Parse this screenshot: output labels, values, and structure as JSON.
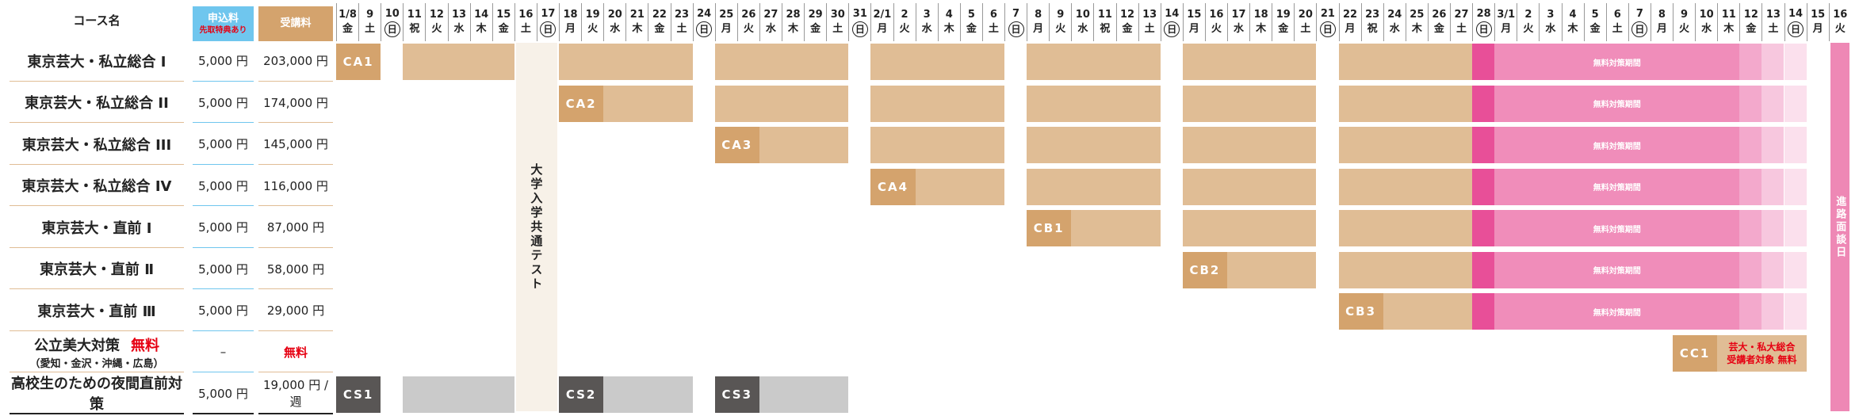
{
  "header": {
    "course": "コース名",
    "apply": "申込料",
    "apply_note": "先取特典あり",
    "fee": "受講料"
  },
  "dates": [
    {
      "date": "1/8",
      "weekday": "金"
    },
    {
      "date": "9",
      "weekday": "土"
    },
    {
      "date": "10",
      "weekday": "日"
    },
    {
      "date": "11",
      "weekday": "祝"
    },
    {
      "date": "12",
      "weekday": "火"
    },
    {
      "date": "13",
      "weekday": "水"
    },
    {
      "date": "14",
      "weekday": "木"
    },
    {
      "date": "15",
      "weekday": "金"
    },
    {
      "date": "16",
      "weekday": "土"
    },
    {
      "date": "17",
      "weekday": "日"
    },
    {
      "date": "18",
      "weekday": "月"
    },
    {
      "date": "19",
      "weekday": "火"
    },
    {
      "date": "20",
      "weekday": "水"
    },
    {
      "date": "21",
      "weekday": "木"
    },
    {
      "date": "22",
      "weekday": "金"
    },
    {
      "date": "23",
      "weekday": "土"
    },
    {
      "date": "24",
      "weekday": "日"
    },
    {
      "date": "25",
      "weekday": "月"
    },
    {
      "date": "26",
      "weekday": "火"
    },
    {
      "date": "27",
      "weekday": "水"
    },
    {
      "date": "28",
      "weekday": "木"
    },
    {
      "date": "29",
      "weekday": "金"
    },
    {
      "date": "30",
      "weekday": "土"
    },
    {
      "date": "31",
      "weekday": "日"
    },
    {
      "date": "2/1",
      "weekday": "月"
    },
    {
      "date": "2",
      "weekday": "火"
    },
    {
      "date": "3",
      "weekday": "水"
    },
    {
      "date": "4",
      "weekday": "木"
    },
    {
      "date": "5",
      "weekday": "金"
    },
    {
      "date": "6",
      "weekday": "土"
    },
    {
      "date": "7",
      "weekday": "日"
    },
    {
      "date": "8",
      "weekday": "月"
    },
    {
      "date": "9",
      "weekday": "火"
    },
    {
      "date": "10",
      "weekday": "水"
    },
    {
      "date": "11",
      "weekday": "祝"
    },
    {
      "date": "12",
      "weekday": "金"
    },
    {
      "date": "13",
      "weekday": "土"
    },
    {
      "date": "14",
      "weekday": "日"
    },
    {
      "date": "15",
      "weekday": "月"
    },
    {
      "date": "16",
      "weekday": "火"
    },
    {
      "date": "17",
      "weekday": "水"
    },
    {
      "date": "18",
      "weekday": "木"
    },
    {
      "date": "19",
      "weekday": "金"
    },
    {
      "date": "20",
      "weekday": "土"
    },
    {
      "date": "21",
      "weekday": "日"
    },
    {
      "date": "22",
      "weekday": "月"
    },
    {
      "date": "23",
      "weekday": "祝"
    },
    {
      "date": "24",
      "weekday": "水"
    },
    {
      "date": "25",
      "weekday": "木"
    },
    {
      "date": "26",
      "weekday": "金"
    },
    {
      "date": "27",
      "weekday": "土"
    },
    {
      "date": "28",
      "weekday": "日"
    },
    {
      "date": "3/1",
      "weekday": "月"
    },
    {
      "date": "2",
      "weekday": "火"
    },
    {
      "date": "3",
      "weekday": "水"
    },
    {
      "date": "4",
      "weekday": "木"
    },
    {
      "date": "5",
      "weekday": "金"
    },
    {
      "date": "6",
      "weekday": "土"
    },
    {
      "date": "7",
      "weekday": "日"
    },
    {
      "date": "8",
      "weekday": "月"
    },
    {
      "date": "9",
      "weekday": "火"
    },
    {
      "date": "10",
      "weekday": "水"
    },
    {
      "date": "11",
      "weekday": "木"
    },
    {
      "date": "12",
      "weekday": "金"
    },
    {
      "date": "13",
      "weekday": "土"
    },
    {
      "date": "14",
      "weekday": "日"
    },
    {
      "date": "15",
      "weekday": "月"
    },
    {
      "date": "16",
      "weekday": "火"
    }
  ],
  "test_day": "大学入学共通テスト",
  "interview_day": "進路面談日",
  "free_period": "無料対策期間",
  "rows": [
    {
      "name": "東京芸大・私立総合 I",
      "apply": "5,000 円",
      "fee": "203,000 円",
      "class": "CA1"
    },
    {
      "name": "東京芸大・私立総合 II",
      "apply": "5,000 円",
      "fee": "174,000 円",
      "class": "CA2"
    },
    {
      "name": "東京芸大・私立総合 III",
      "apply": "5,000 円",
      "fee": "145,000 円",
      "class": "CA3"
    },
    {
      "name": "東京芸大・私立総合 IV",
      "apply": "5,000 円",
      "fee": "116,000 円",
      "class": "CA4"
    },
    {
      "name": "東京芸大・直前 Ⅰ",
      "apply": "5,000 円",
      "fee": "87,000 円",
      "class": "CB1"
    },
    {
      "name": "東京芸大・直前 Ⅱ",
      "apply": "5,000 円",
      "fee": "58,000 円",
      "class": "CB2"
    },
    {
      "name": "東京芸大・直前 Ⅲ",
      "apply": "5,000 円",
      "fee": "29,000 円",
      "class": "CB3"
    },
    {
      "name": "公立美大対策",
      "name_note": "無料",
      "sub": "（愛知・金沢・沖縄・広島）",
      "apply": "–",
      "fee": "無料",
      "class": "CC1",
      "class_note": [
        "芸大・私大総合",
        "受講者対象 無料"
      ]
    },
    {
      "name": "高校生のための夜間直前対策",
      "apply": "5,000 円",
      "fee": "19,000 円 / 週",
      "classes": [
        "CS1",
        "CS2",
        "CS3"
      ]
    }
  ]
}
